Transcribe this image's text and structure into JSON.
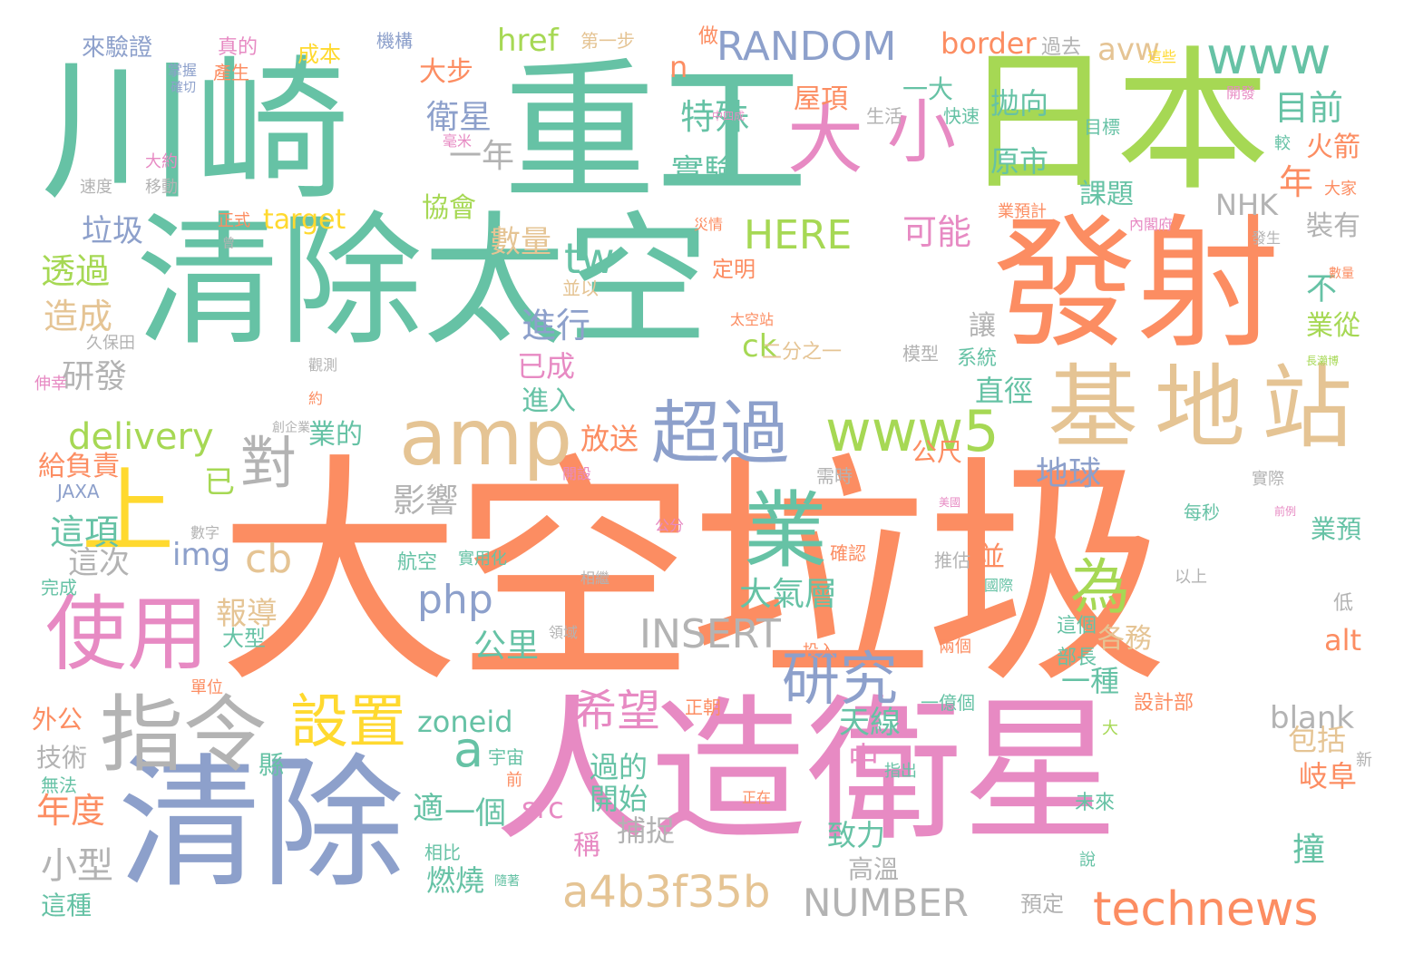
{
  "palette": {
    "teal": "#66c2a5",
    "orange": "#fc8d62",
    "blue": "#8da0cb",
    "pink": "#e78ac3",
    "green": "#a6d854",
    "yellow": "#ffd92f",
    "tan": "#e5c494",
    "gray": "#b3b3b3"
  },
  "words": [
    "大空垃圾",
    "清除太空",
    "重工",
    "川崎",
    "日本",
    "發射",
    "人造衛星",
    "清除",
    "基地站",
    "amp",
    "上",
    "業",
    "使用",
    "指令",
    "超過",
    "www5",
    "對",
    "大",
    "小",
    "www",
    "RANDOM",
    "technews",
    "a4b3f35b",
    "NUMBER",
    "INSERT",
    "設置",
    "研究",
    "希望",
    "php",
    "tw",
    "HERE",
    "delivery",
    "zoneid",
    "blank",
    "cb",
    "a",
    "為",
    "img",
    "src",
    "ck",
    "href",
    "border",
    "avw",
    "alt",
    "NHK",
    "target",
    "JAXA",
    "n",
    "特殊",
    "實驗",
    "一年",
    "目前",
    "年",
    "可能",
    "數量",
    "進行",
    "地球",
    "直徑",
    "大氣層",
    "公里",
    "影響",
    "研發",
    "透過",
    "造成",
    "垃圾",
    "這項",
    "這次",
    "小型",
    "年度",
    "技術",
    "外公",
    "報導",
    "大型",
    "衛星",
    "協會",
    "大步",
    "已成",
    "進入",
    "放送",
    "業的",
    "給負責",
    "已",
    "過的",
    "開始",
    "一個",
    "適",
    "捕捉",
    "燃燒",
    "稱",
    "致力",
    "高溫",
    "中",
    "天線",
    "各務",
    "一種",
    "包括",
    "岐阜",
    "撞",
    "業預",
    "業從",
    "不",
    "裝有",
    "課題",
    "原市",
    "拋向",
    "火箭",
    "屋項",
    "一大",
    "讓",
    "公尺",
    "系統",
    "模型",
    "生活",
    "快速",
    "目標",
    "大家",
    "業預計",
    "內閣府",
    "發生",
    "災情",
    "定明",
    "並以",
    "二分之一",
    "太空站",
    "觀測",
    "久保田",
    "伸幸",
    "約",
    "創企業",
    "開設",
    "需時",
    "確認",
    "推估",
    "國際",
    "實際",
    "美國",
    "每秒",
    "前例",
    "公分",
    "數字",
    "完成",
    "航空",
    "實用化",
    "相繼",
    "以上",
    "這個",
    "低",
    "領域",
    "投入",
    "兩個",
    "部長",
    "單位",
    "正朝",
    "一億個",
    "設計部",
    "大",
    "新",
    "宇宙",
    "前",
    "縣",
    "指出",
    "無法",
    "正在",
    "未來",
    "說",
    "預定",
    "相比",
    "這種",
    "隨著",
    "真的",
    "產生",
    "成本",
    "機構",
    "第一步",
    "做",
    "過去",
    "來驗證",
    "掌握",
    "確切",
    "較",
    "這些",
    "開發",
    "中四成",
    "毫米",
    "大約",
    "速度",
    "移動",
    "正式",
    "曾",
    "數量",
    "長瀨博",
    "並"
  ]
}
